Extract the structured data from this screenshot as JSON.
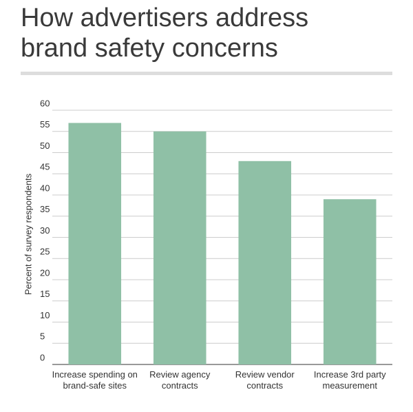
{
  "chart_data": {
    "type": "bar",
    "title": "How advertisers address brand safety concerns",
    "y_label": "Percent of survey respondents",
    "categories": [
      "Increase spending on brand-safe sites",
      "Review agency contracts",
      "Review vendor contracts",
      "Increase 3rd party measurement"
    ],
    "values": [
      57,
      55,
      48,
      39
    ],
    "color": "#8fc0a6",
    "ylim": [
      0,
      60
    ],
    "yticks": [
      0,
      5,
      10,
      15,
      20,
      25,
      30,
      35,
      40,
      45,
      50,
      55,
      60
    ],
    "grid": true
  }
}
